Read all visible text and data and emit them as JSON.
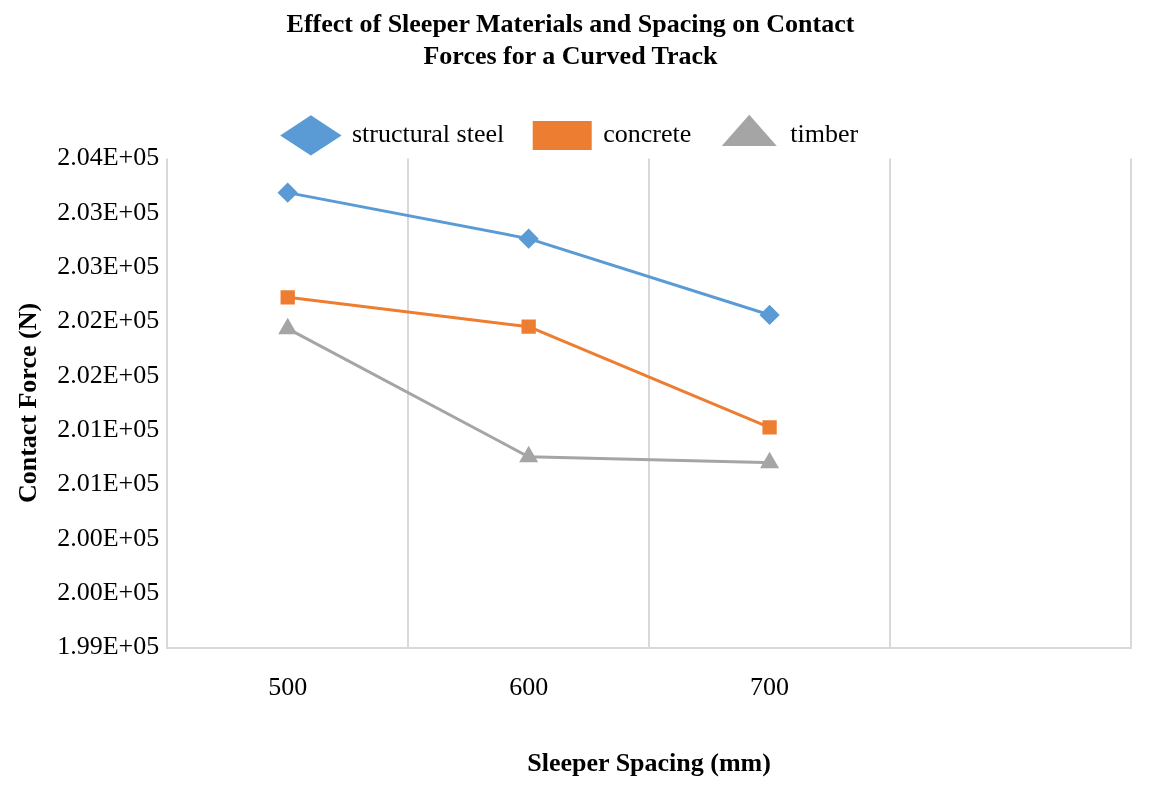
{
  "chart_data": {
    "type": "line",
    "title": "Effect of Sleeper Materials and Spacing on Contact Forces for a Curved Track",
    "xlabel": "Sleeper Spacing (mm)",
    "ylabel": "Contact Force (N)",
    "categories": [
      "500",
      "600",
      "700",
      null
    ],
    "series": [
      {
        "name": "structural steel",
        "color": "#5b9bd5",
        "marker": "diamond",
        "values": [
          203650,
          203180,
          202400,
          null
        ]
      },
      {
        "name": "concrete",
        "color": "#ed7d31",
        "marker": "square",
        "values": [
          202580,
          202280,
          201250,
          null
        ]
      },
      {
        "name": "timber",
        "color": "#a5a5a5",
        "marker": "triangle",
        "values": [
          202260,
          200950,
          200890,
          null
        ]
      }
    ],
    "ylim": [
      199000,
      204000
    ],
    "yticks": [
      {
        "value": 199000,
        "label": "1.99E+05"
      },
      {
        "value": 199555.6,
        "label": "2.00E+05"
      },
      {
        "value": 200111.1,
        "label": "2.00E+05"
      },
      {
        "value": 200666.7,
        "label": "2.01E+05"
      },
      {
        "value": 201222.2,
        "label": "2.01E+05"
      },
      {
        "value": 201777.8,
        "label": "2.02E+05"
      },
      {
        "value": 202333.3,
        "label": "2.02E+05"
      },
      {
        "value": 202888.9,
        "label": "2.03E+05"
      },
      {
        "value": 203444.4,
        "label": "2.03E+05"
      },
      {
        "value": 204000,
        "label": "2.04E+05"
      }
    ],
    "grid": "x",
    "legend": "top",
    "line_style": "solid"
  }
}
